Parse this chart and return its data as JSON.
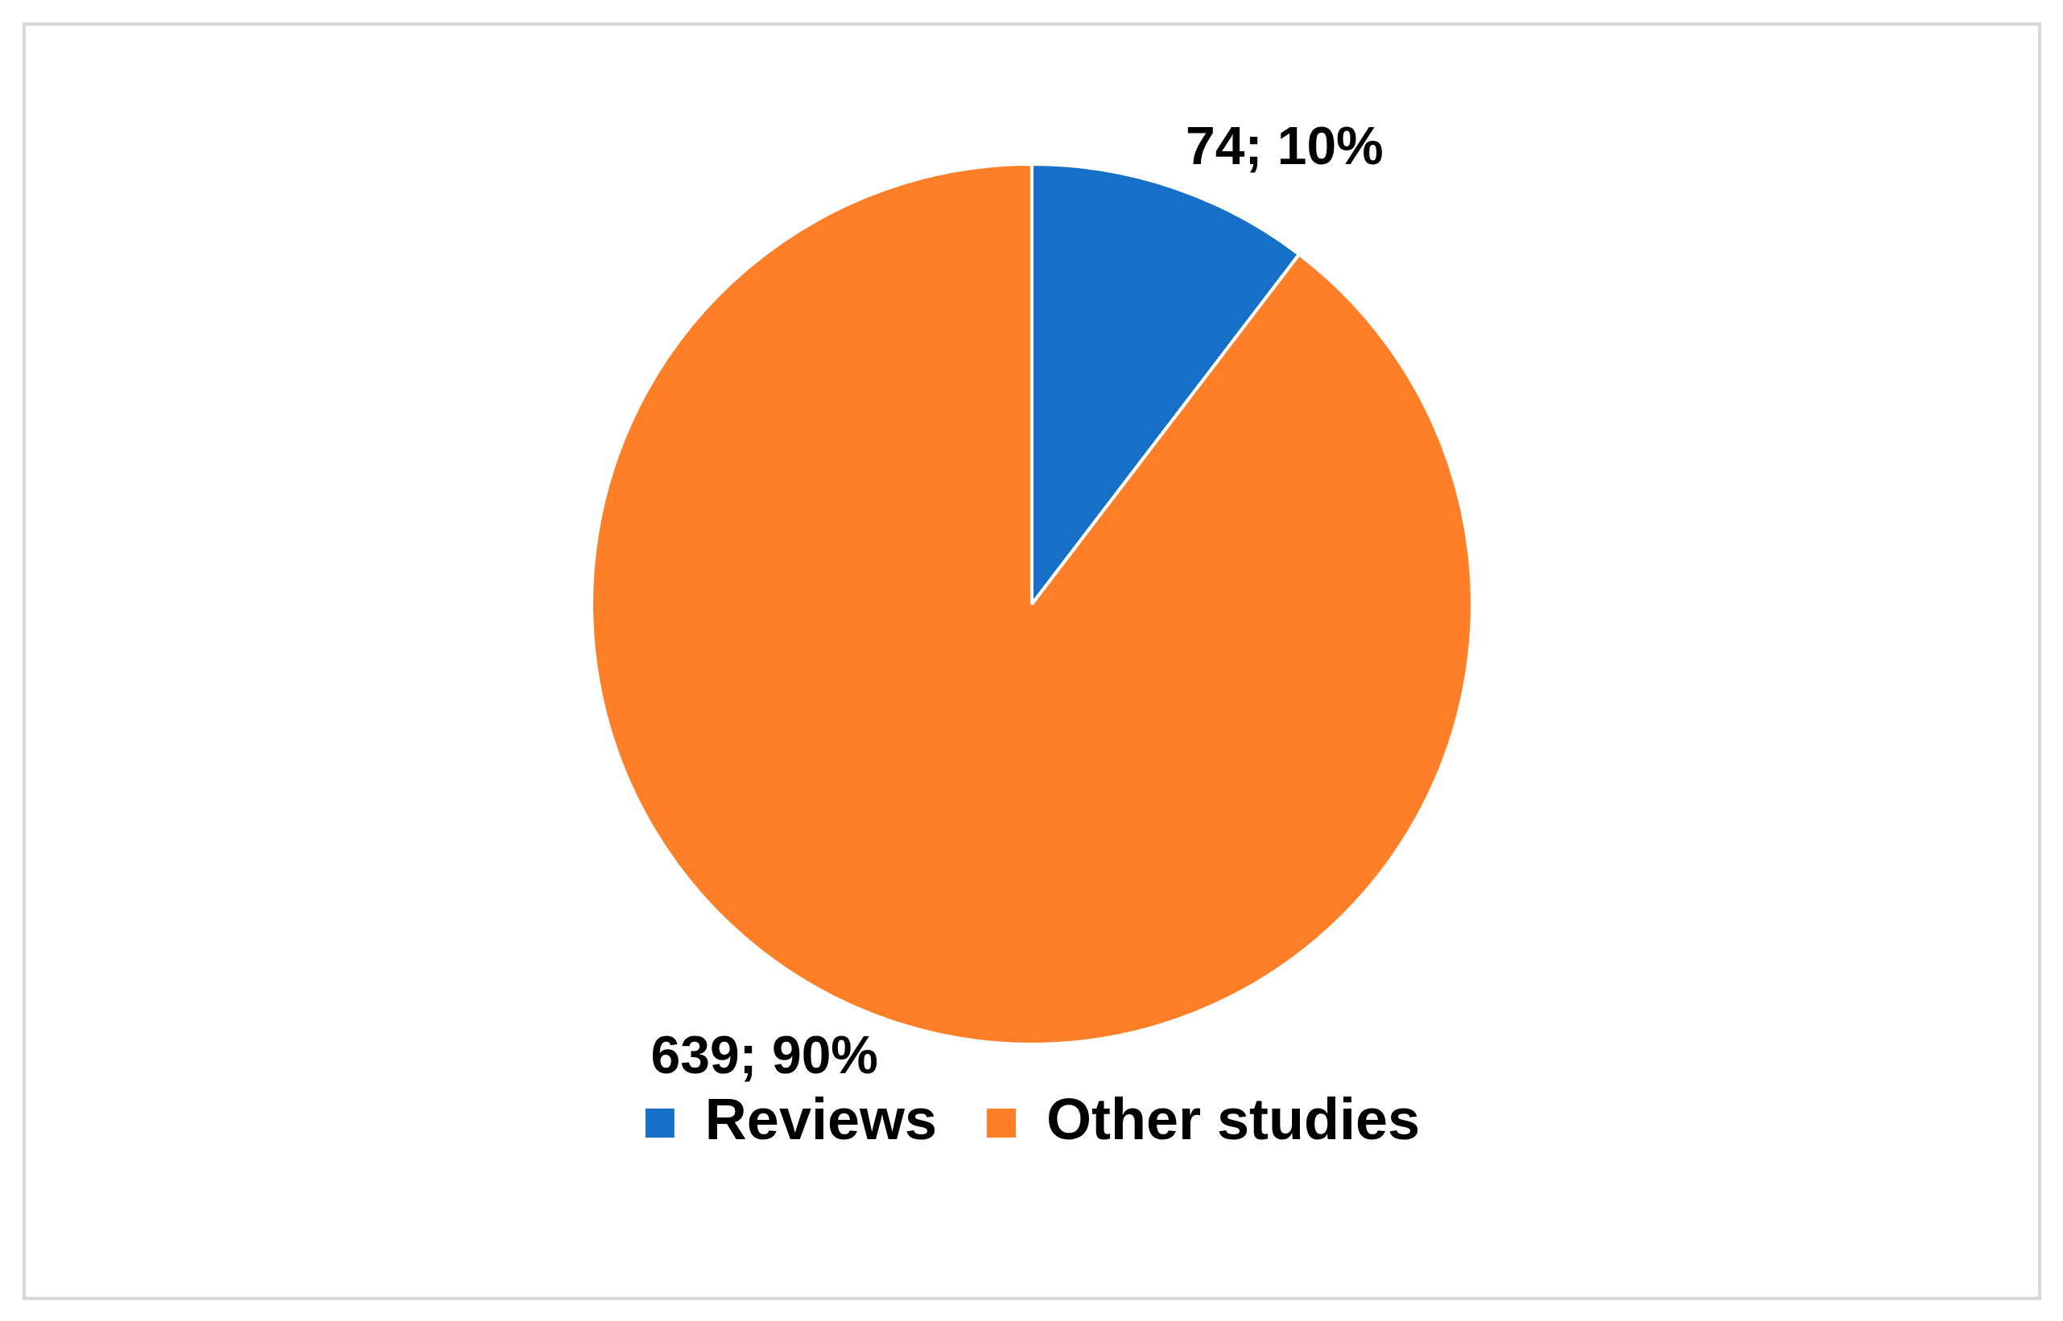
{
  "chart_data": {
    "type": "pie",
    "categories": [
      "Reviews",
      "Other studies"
    ],
    "values": [
      74,
      639
    ],
    "colors": [
      "#1670c8",
      "#fe7f27"
    ],
    "value_labels": [
      "74; 10%",
      "639; 90%"
    ],
    "legend": "bottom"
  }
}
